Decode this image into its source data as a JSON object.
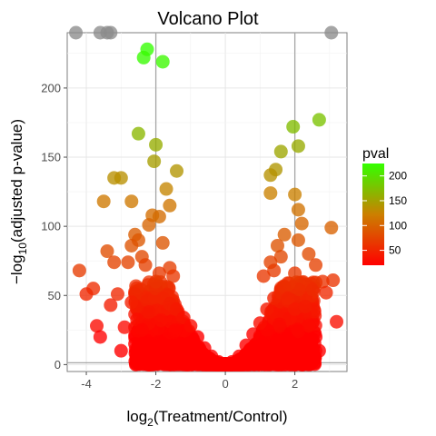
{
  "chart_data": {
    "type": "scatter",
    "title": "Volcano Plot",
    "xlabel": {
      "prefix": "log",
      "sub": "2",
      "body": "(Treatment/Control)"
    },
    "ylabel": {
      "prefix": "−log",
      "sub": "10",
      "body": "(adjusted p-value)"
    },
    "xlim": [
      -4.55,
      3.5
    ],
    "ylim": [
      -5,
      240
    ],
    "xticks": [
      -4,
      -2,
      0,
      2
    ],
    "yticks": [
      0,
      50,
      100,
      150,
      200
    ],
    "vlines": [
      -2,
      2
    ],
    "hline": 1.3,
    "grid": true,
    "legend": {
      "title": "pval",
      "position": "right",
      "ticks": [
        50,
        100,
        150,
        200
      ],
      "min": 20,
      "max": 225,
      "color_low": "#ff0000",
      "color_mid": "#cc7f00",
      "color_high": "#33ff00"
    },
    "capped_value": 240,
    "capped_color": "#8c8c8c",
    "points": [
      {
        "x": -4.3,
        "y": 240
      },
      {
        "x": -3.6,
        "y": 240
      },
      {
        "x": -3.4,
        "y": 240
      },
      {
        "x": -3.3,
        "y": 240
      },
      {
        "x": 3.05,
        "y": 240
      },
      {
        "x": -2.25,
        "y": 228
      },
      {
        "x": -2.35,
        "y": 222
      },
      {
        "x": -1.8,
        "y": 219
      },
      {
        "x": -2.5,
        "y": 167
      },
      {
        "x": -2.0,
        "y": 159
      },
      {
        "x": -2.05,
        "y": 147
      },
      {
        "x": -1.4,
        "y": 140
      },
      {
        "x": -3.2,
        "y": 135
      },
      {
        "x": -3.0,
        "y": 135
      },
      {
        "x": -1.7,
        "y": 127
      },
      {
        "x": -2.7,
        "y": 118
      },
      {
        "x": -3.5,
        "y": 118
      },
      {
        "x": -1.6,
        "y": 115
      },
      {
        "x": -2.1,
        "y": 108
      },
      {
        "x": -1.9,
        "y": 107
      },
      {
        "x": -2.2,
        "y": 101
      },
      {
        "x": -2.6,
        "y": 94
      },
      {
        "x": -2.5,
        "y": 90
      },
      {
        "x": -2.7,
        "y": 86
      },
      {
        "x": -1.8,
        "y": 88
      },
      {
        "x": -3.4,
        "y": 82
      },
      {
        "x": -3.2,
        "y": 74
      },
      {
        "x": -2.8,
        "y": 74
      },
      {
        "x": -2.4,
        "y": 78
      },
      {
        "x": -2.3,
        "y": 72
      },
      {
        "x": -4.2,
        "y": 68
      },
      {
        "x": -1.6,
        "y": 70
      },
      {
        "x": -2.0,
        "y": 60
      },
      {
        "x": -1.9,
        "y": 66
      },
      {
        "x": -1.5,
        "y": 64
      },
      {
        "x": -3.8,
        "y": 55
      },
      {
        "x": -4.0,
        "y": 51
      },
      {
        "x": -3.1,
        "y": 51
      },
      {
        "x": -2.6,
        "y": 51
      },
      {
        "x": -2.7,
        "y": 45
      },
      {
        "x": -3.3,
        "y": 43
      },
      {
        "x": -2.2,
        "y": 38
      },
      {
        "x": -3.7,
        "y": 28
      },
      {
        "x": -2.9,
        "y": 27
      },
      {
        "x": -2.4,
        "y": 25
      },
      {
        "x": -3.6,
        "y": 20
      },
      {
        "x": 2.7,
        "y": 177
      },
      {
        "x": 1.95,
        "y": 172
      },
      {
        "x": 1.6,
        "y": 154
      },
      {
        "x": 2.1,
        "y": 158
      },
      {
        "x": 1.45,
        "y": 141
      },
      {
        "x": 1.3,
        "y": 137
      },
      {
        "x": 2.0,
        "y": 123
      },
      {
        "x": 1.3,
        "y": 124
      },
      {
        "x": 2.1,
        "y": 112
      },
      {
        "x": 3.05,
        "y": 99
      },
      {
        "x": 2.2,
        "y": 102
      },
      {
        "x": 1.7,
        "y": 94
      },
      {
        "x": 2.1,
        "y": 90
      },
      {
        "x": 1.5,
        "y": 86
      },
      {
        "x": 2.4,
        "y": 80
      },
      {
        "x": 1.6,
        "y": 78
      },
      {
        "x": 1.3,
        "y": 74
      },
      {
        "x": 2.6,
        "y": 72
      },
      {
        "x": 1.4,
        "y": 68
      },
      {
        "x": 2.0,
        "y": 66
      },
      {
        "x": 1.1,
        "y": 64
      },
      {
        "x": 3.1,
        "y": 61
      },
      {
        "x": 2.8,
        "y": 60
      },
      {
        "x": 1.7,
        "y": 56
      },
      {
        "x": 2.9,
        "y": 52
      },
      {
        "x": 1.8,
        "y": 48
      },
      {
        "x": 2.3,
        "y": 42
      },
      {
        "x": 3.2,
        "y": 31
      },
      {
        "x": 2.4,
        "y": 28
      },
      {
        "x": 2.1,
        "y": 24
      },
      {
        "x": 2.6,
        "y": 20
      }
    ],
    "dense_cloud": [
      {
        "x": -2.0,
        "y": 55
      },
      {
        "x": -1.8,
        "y": 48
      },
      {
        "x": -1.6,
        "y": 44
      },
      {
        "x": -1.4,
        "y": 40
      },
      {
        "x": -1.2,
        "y": 34
      },
      {
        "x": -1.0,
        "y": 28
      },
      {
        "x": -0.8,
        "y": 20
      },
      {
        "x": -0.6,
        "y": 12
      },
      {
        "x": -0.4,
        "y": 6
      },
      {
        "x": -0.2,
        "y": 2
      },
      {
        "x": 0.0,
        "y": 0.5
      },
      {
        "x": 0.2,
        "y": 2
      },
      {
        "x": 0.4,
        "y": 6
      },
      {
        "x": 0.6,
        "y": 14
      },
      {
        "x": 0.8,
        "y": 22
      },
      {
        "x": 1.0,
        "y": 30
      },
      {
        "x": 1.2,
        "y": 40
      },
      {
        "x": 1.4,
        "y": 48
      },
      {
        "x": 1.6,
        "y": 52
      },
      {
        "x": 1.8,
        "y": 46
      },
      {
        "x": 2.0,
        "y": 40
      },
      {
        "x": -2.2,
        "y": 30
      },
      {
        "x": -2.6,
        "y": 15
      },
      {
        "x": -3.0,
        "y": 10
      },
      {
        "x": 2.3,
        "y": 18
      },
      {
        "x": 2.7,
        "y": 10
      }
    ]
  }
}
